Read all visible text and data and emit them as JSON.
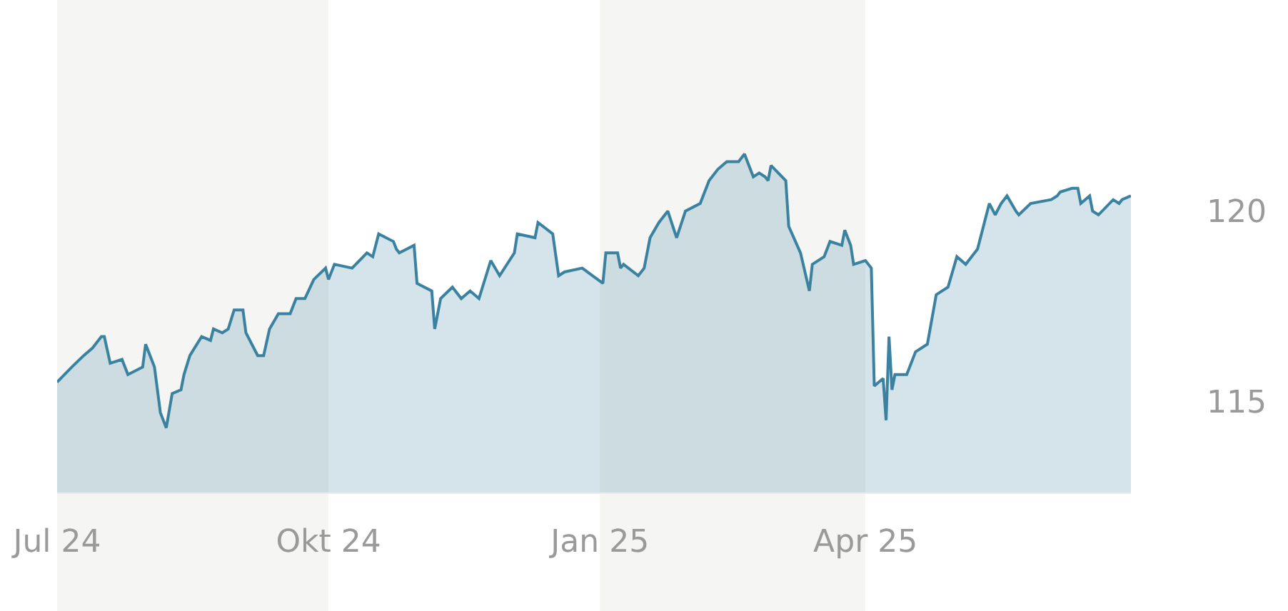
{
  "chart_data": {
    "type": "area",
    "x": [
      "2024-07-01",
      "2024-07-06",
      "2024-07-10",
      "2024-07-13",
      "2024-07-16",
      "2024-07-17",
      "2024-07-19",
      "2024-07-23",
      "2024-07-25",
      "2024-07-30",
      "2024-07-31",
      "2024-08-03",
      "2024-08-05",
      "2024-08-07",
      "2024-08-09",
      "2024-08-12",
      "2024-08-13",
      "2024-08-15",
      "2024-08-19",
      "2024-08-22",
      "2024-08-23",
      "2024-08-26",
      "2024-08-28",
      "2024-08-30",
      "2024-09-02",
      "2024-09-03",
      "2024-09-07",
      "2024-09-09",
      "2024-09-11",
      "2024-09-14",
      "2024-09-18",
      "2024-09-20",
      "2024-09-23",
      "2024-09-26",
      "2024-09-30",
      "2024-10-01",
      "2024-10-03",
      "2024-10-09",
      "2024-10-14",
      "2024-10-16",
      "2024-10-18",
      "2024-10-23",
      "2024-10-24",
      "2024-10-25",
      "2024-10-30",
      "2024-10-31",
      "2024-11-05",
      "2024-11-06",
      "2024-11-08",
      "2024-11-12",
      "2024-11-15",
      "2024-11-18",
      "2024-11-21",
      "2024-11-25",
      "2024-11-28",
      "2024-12-03",
      "2024-12-04",
      "2024-12-10",
      "2024-12-11",
      "2024-12-16",
      "2024-12-18",
      "2024-12-20",
      "2024-12-26",
      "2025-01-02",
      "2025-01-03",
      "2025-01-07",
      "2025-01-08",
      "2025-01-09",
      "2025-01-14",
      "2025-01-16",
      "2025-01-18",
      "2025-01-21",
      "2025-01-24",
      "2025-01-27",
      "2025-01-30",
      "2025-02-04",
      "2025-02-07",
      "2025-02-10",
      "2025-02-13",
      "2025-02-17",
      "2025-02-19",
      "2025-02-22",
      "2025-02-24",
      "2025-02-26",
      "2025-02-27",
      "2025-02-28",
      "2025-03-05",
      "2025-03-06",
      "2025-03-10",
      "2025-03-13",
      "2025-03-14",
      "2025-03-18",
      "2025-03-20",
      "2025-03-24",
      "2025-03-25",
      "2025-03-27",
      "2025-03-28",
      "2025-04-01",
      "2025-04-03",
      "2025-04-04",
      "2025-04-07",
      "2025-04-08",
      "2025-04-09",
      "2025-04-10",
      "2025-04-11",
      "2025-04-15",
      "2025-04-18",
      "2025-04-22",
      "2025-04-25",
      "2025-04-29",
      "2025-05-02",
      "2025-05-05",
      "2025-05-08",
      "2025-05-09",
      "2025-05-13",
      "2025-05-15",
      "2025-05-17",
      "2025-05-19",
      "2025-05-22",
      "2025-05-23",
      "2025-05-27",
      "2025-06-03",
      "2025-06-05",
      "2025-06-06",
      "2025-06-10",
      "2025-06-12",
      "2025-06-13",
      "2025-06-16",
      "2025-06-17",
      "2025-06-19",
      "2025-06-24",
      "2025-06-26",
      "2025-06-27",
      "2025-06-30"
    ],
    "series": [
      {
        "color": "#3a82a0",
        "values": [
          115.5,
          115.9,
          116.2,
          116.4,
          116.7,
          116.7,
          116.0,
          116.1,
          115.7,
          115.9,
          116.5,
          115.9,
          114.7,
          114.3,
          115.2,
          115.3,
          115.7,
          116.2,
          116.7,
          116.6,
          116.9,
          116.8,
          116.9,
          117.4,
          117.4,
          116.8,
          116.2,
          116.2,
          116.9,
          117.3,
          117.3,
          117.7,
          117.7,
          118.2,
          118.5,
          118.2,
          118.6,
          118.5,
          118.9,
          118.8,
          119.4,
          119.2,
          119.0,
          118.9,
          119.1,
          118.1,
          117.9,
          116.9,
          117.7,
          118.0,
          117.7,
          117.9,
          117.7,
          118.7,
          118.3,
          118.9,
          119.4,
          119.3,
          119.7,
          119.4,
          118.3,
          118.4,
          118.5,
          118.1,
          118.9,
          118.9,
          118.5,
          118.6,
          118.3,
          118.5,
          119.3,
          119.7,
          120.0,
          119.3,
          120.0,
          120.2,
          120.8,
          121.1,
          121.3,
          121.3,
          121.5,
          120.9,
          121.0,
          120.9,
          120.8,
          121.2,
          120.8,
          119.6,
          118.9,
          117.9,
          118.6,
          118.8,
          119.2,
          119.1,
          119.5,
          119.1,
          118.6,
          118.7,
          118.5,
          115.4,
          115.6,
          114.5,
          116.7,
          115.3,
          115.7,
          115.7,
          116.3,
          116.5,
          117.8,
          118.0,
          118.8,
          118.6,
          118.9,
          119.0,
          120.2,
          119.9,
          120.2,
          120.4,
          120.0,
          119.9,
          120.2,
          120.3,
          120.4,
          120.5,
          120.6,
          120.6,
          120.2,
          120.4,
          120.0,
          119.9,
          120.3,
          120.2,
          120.3,
          120.4
        ]
      }
    ],
    "xlim": [
      "2024-07-01",
      "2025-06-30"
    ],
    "xticks": [
      {
        "value": "2024-07-01",
        "label": "Jul 24"
      },
      {
        "value": "2024-10-01",
        "label": "Okt 24"
      },
      {
        "value": "2025-01-01",
        "label": "Jan 25"
      },
      {
        "value": "2025-04-01",
        "label": "Apr 25"
      }
    ],
    "ylim": [
      112.6,
      125.55
    ],
    "yticks": [
      115,
      120
    ],
    "bands": [
      {
        "axis": "x",
        "from": "2024-07-01",
        "to": "2024-10-01",
        "color": "#f5f5f3"
      },
      {
        "axis": "x",
        "from": "2025-01-01",
        "to": "2025-04-01",
        "color": "#f5f5f3"
      }
    ]
  }
}
